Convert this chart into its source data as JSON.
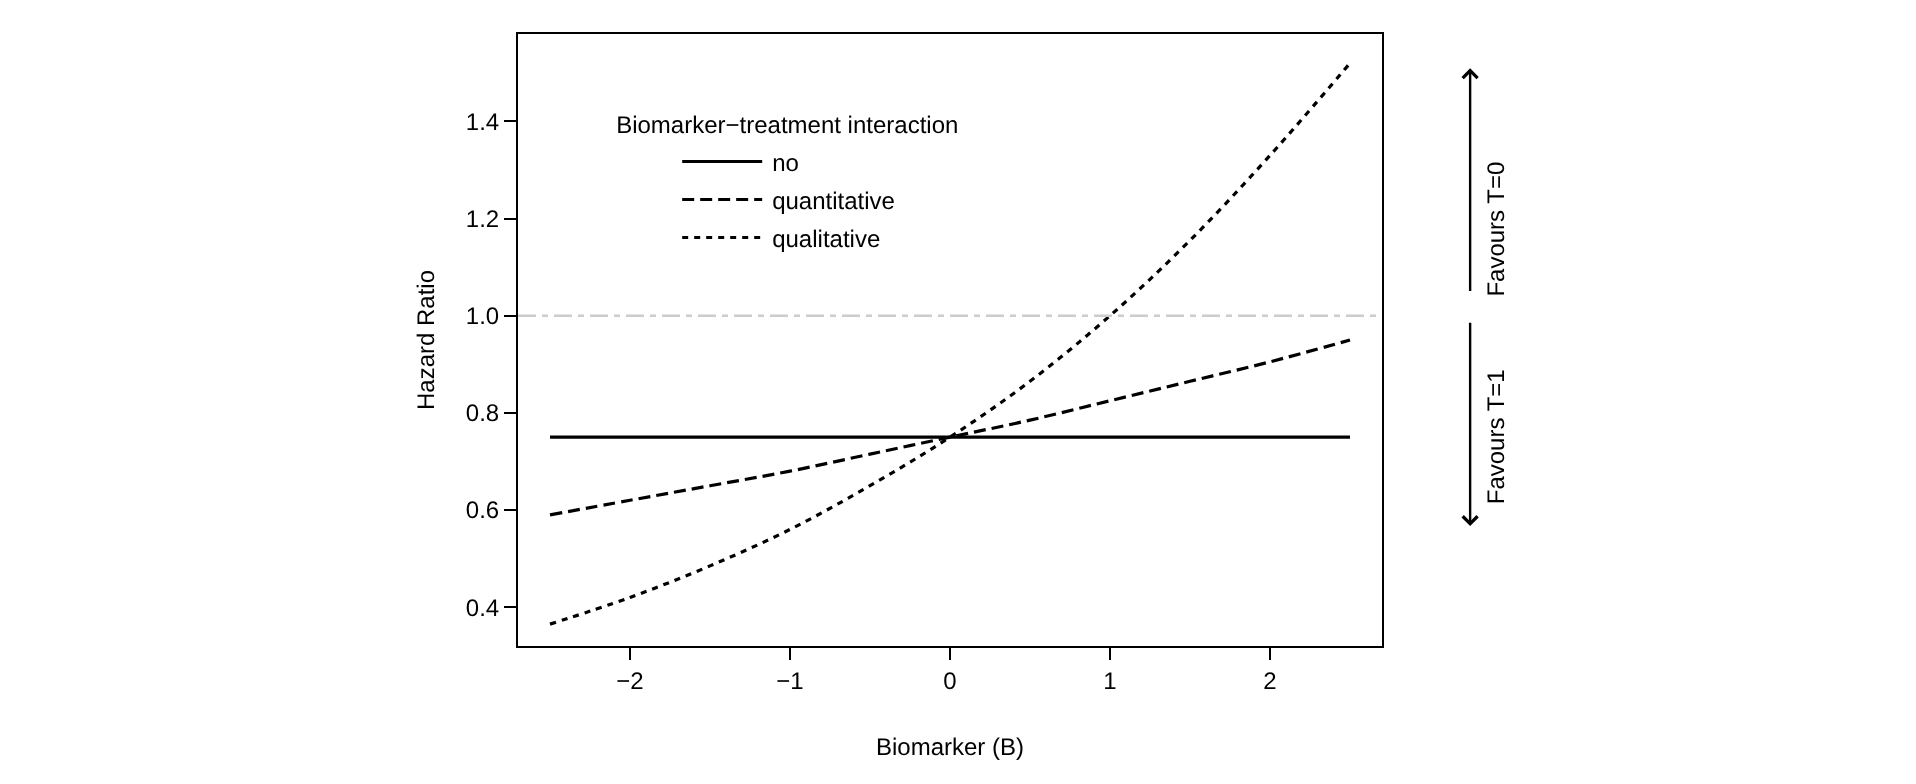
{
  "chart_data": {
    "type": "line",
    "xlabel": "Biomarker (B)",
    "ylabel": "Hazard Ratio",
    "legend_title": "Biomarker−treatment interaction",
    "x": [
      -2.5,
      -2,
      -1.5,
      -1,
      -0.5,
      0,
      0.5,
      1,
      1.5,
      2,
      2.5
    ],
    "series": [
      {
        "name": "no",
        "color": "#000000",
        "line_style": "solid",
        "values": [
          0.75,
          0.75,
          0.75,
          0.75,
          0.75,
          0.75,
          0.75,
          0.75,
          0.75,
          0.75,
          0.75
        ]
      },
      {
        "name": "quantitative",
        "color": "#000000",
        "line_style": "dashed",
        "values": [
          0.59,
          0.62,
          0.65,
          0.68,
          0.715,
          0.75,
          0.785,
          0.825,
          0.865,
          0.905,
          0.95
        ]
      },
      {
        "name": "qualitative",
        "color": "#000000",
        "line_style": "dotted",
        "values": [
          0.365,
          0.42,
          0.485,
          0.56,
          0.65,
          0.75,
          0.865,
          1.0,
          1.155,
          1.33,
          1.52
        ]
      }
    ],
    "xlim": [
      -2.7,
      2.7
    ],
    "xticks": [
      {
        "value": -2,
        "label": "−2"
      },
      {
        "value": -1,
        "label": "−1"
      },
      0,
      1,
      2
    ],
    "ylim": [
      0.32,
      1.58
    ],
    "yticks": [
      {
        "value": 0.4,
        "label": "0.4"
      },
      {
        "value": 0.6,
        "label": "0.6"
      },
      {
        "value": 0.8,
        "label": "0.8"
      },
      {
        "value": 1.0,
        "label": "1.0"
      },
      {
        "value": 1.2,
        "label": "1.2"
      },
      {
        "value": 1.4,
        "label": "1.4"
      }
    ],
    "ref_lines": [
      {
        "axis": "y",
        "value": 1.0,
        "color": "#cccccc",
        "line_style": "dashdot"
      }
    ],
    "annotations": [
      "Favours T=0",
      "Favours T=1"
    ],
    "legend": "top left",
    "marker": "none"
  }
}
